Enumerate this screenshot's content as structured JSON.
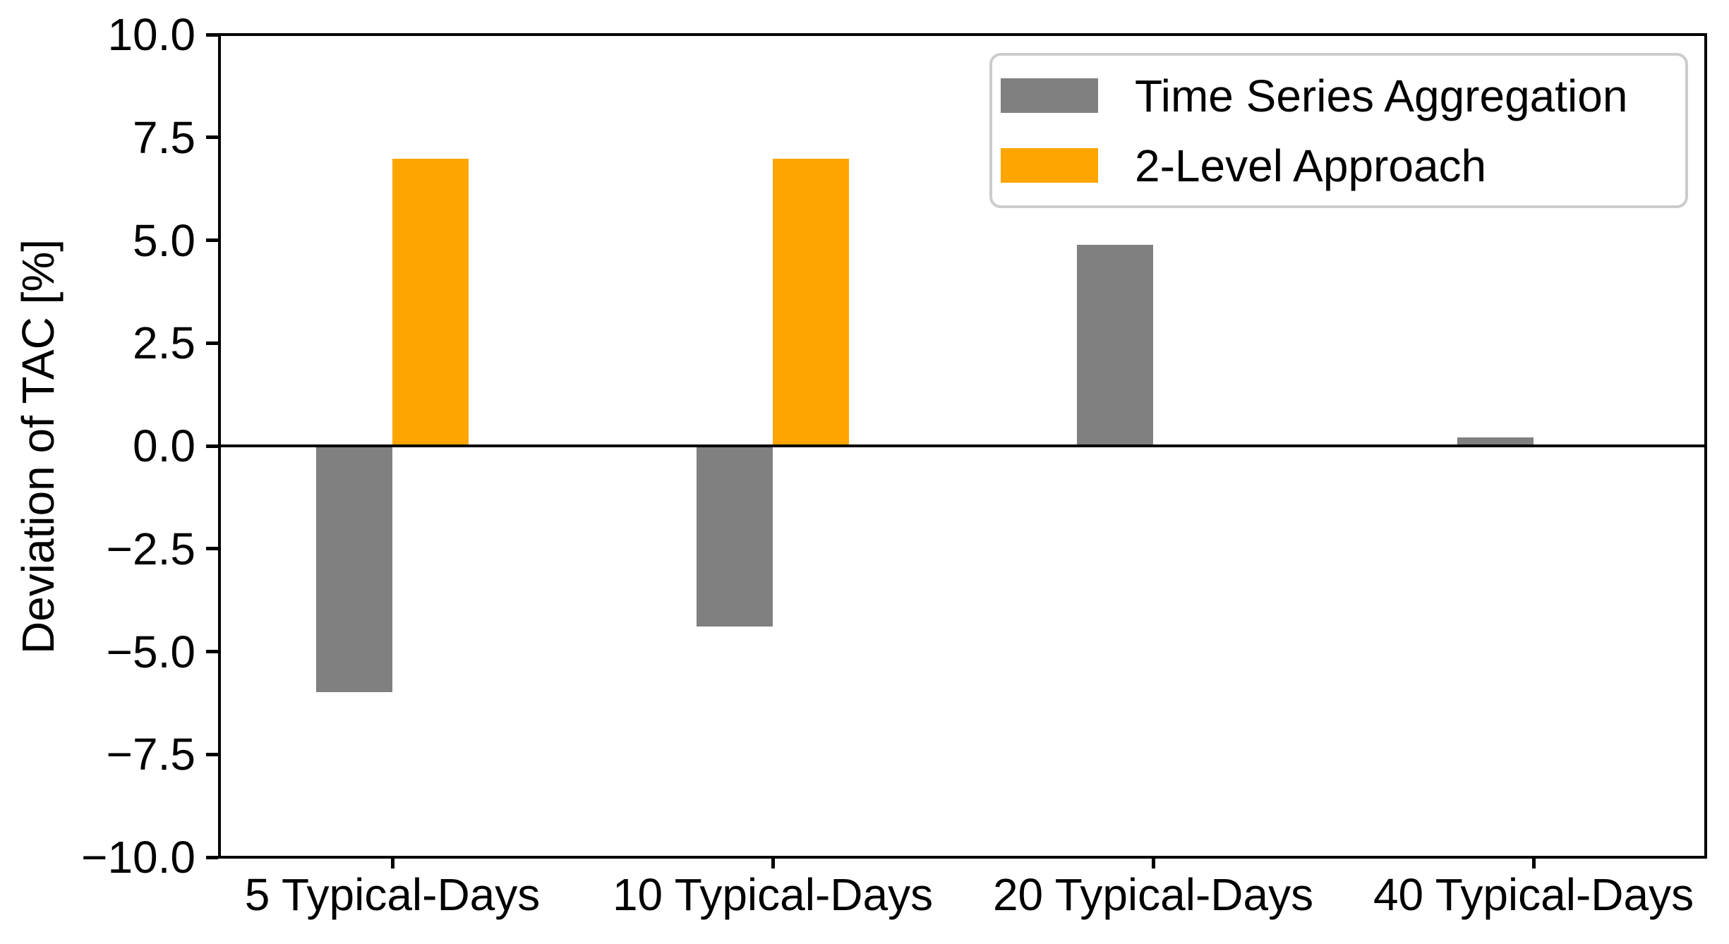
{
  "figure": {
    "background": "#ffffff",
    "text_color": "#000000",
    "spine_color": "#000000"
  },
  "chart_data": {
    "type": "bar",
    "title": "",
    "xlabel": "",
    "ylabel": "Deviation of TAC [%]",
    "categories": [
      "5 Typical-Days",
      "10 Typical-Days",
      "20 Typical-Days",
      "40 Typical-Days"
    ],
    "series": [
      {
        "name": "Time Series Aggregation",
        "color": "#808080",
        "values": [
          -6.0,
          -4.4,
          4.9,
          0.2
        ]
      },
      {
        "name": "2-Level Approach",
        "color": "#FFA500",
        "values": [
          7.0,
          7.0,
          0.0,
          0.0
        ]
      }
    ],
    "ylim": [
      -10.0,
      10.0
    ],
    "ytick_step": 2.5,
    "ytick_labels": [
      "10.0",
      "7.5",
      "5.0",
      "2.5",
      "0.0",
      "−2.5",
      "−5.0",
      "−7.5",
      "−10.0"
    ],
    "grid": false,
    "zero_line": true,
    "legend_position": "upper right"
  },
  "legend": {
    "border_color": "#cccccc",
    "items": [
      {
        "label": "Time Series Aggregation",
        "color": "#808080"
      },
      {
        "label": "2-Level Approach",
        "color": "#FFA500"
      }
    ]
  }
}
